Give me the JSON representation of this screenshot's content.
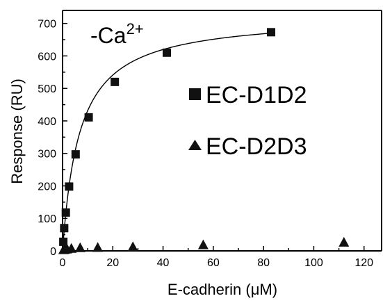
{
  "chart_data": {
    "type": "scatter",
    "title": "",
    "annotation": {
      "text": "-Ca",
      "superscript": "2+"
    },
    "xlabel": "E-cadherin (μM)",
    "ylabel": "Response (RU)",
    "xlim": [
      0,
      127
    ],
    "ylim": [
      0,
      740
    ],
    "xticks": [
      0,
      20,
      40,
      60,
      80,
      100,
      120
    ],
    "yticks": [
      0,
      100,
      200,
      300,
      400,
      500,
      600,
      700
    ],
    "grid": false,
    "legend_placement": "center-right",
    "series": [
      {
        "name": "EC-D1D2",
        "marker": "square",
        "color": "#111111",
        "x": [
          0.3,
          0.65,
          1.3,
          2.6,
          5.2,
          10.4,
          20.8,
          41.5,
          83
        ],
        "y": [
          28,
          70,
          118,
          198,
          297,
          411,
          520,
          610,
          673
        ],
        "fit": {
          "model": "hyperbolic",
          "ymax": 725,
          "kd": 6.8
        }
      },
      {
        "name": "EC-D2D3",
        "marker": "triangle",
        "color": "#111111",
        "x": [
          0.4,
          0.9,
          1.8,
          3.5,
          7,
          14,
          28,
          56,
          112
        ],
        "y": [
          3,
          4,
          5,
          7,
          9,
          10,
          12,
          18,
          26
        ]
      }
    ]
  }
}
